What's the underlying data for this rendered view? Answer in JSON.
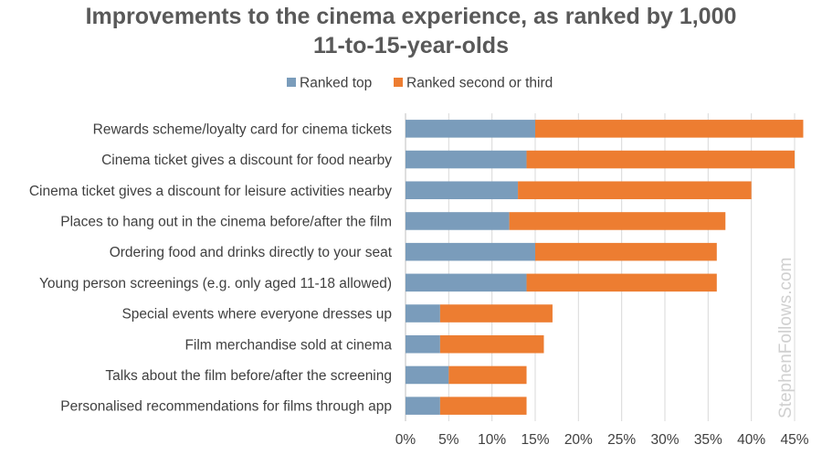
{
  "chart_data": {
    "type": "bar",
    "orientation": "horizontal",
    "stacked": true,
    "title_lines": [
      "Improvements to the cinema experience, as ranked by 1,000",
      "11-to-15-year-olds"
    ],
    "categories": [
      "Rewards scheme/loyalty card for cinema tickets",
      "Cinema ticket gives a discount for food nearby",
      "Cinema ticket gives a discount for leisure activities nearby",
      "Places to hang out in the cinema before/after the film",
      "Ordering food and drinks directly to your seat",
      "Young person screenings (e.g. only aged 11-18 allowed)",
      "Special events where everyone dresses up",
      "Film merchandise sold at cinema",
      "Talks about the film before/after the screening",
      "Personalised recommendations for films through app"
    ],
    "series": [
      {
        "name": "Ranked top",
        "color": "#7a9cbb",
        "values": [
          15,
          14,
          13,
          12,
          15,
          14,
          4,
          4,
          5,
          4
        ]
      },
      {
        "name": "Ranked second or third",
        "color": "#ed7d31",
        "values": [
          31,
          31,
          27,
          25,
          21,
          22,
          13,
          12,
          9,
          10
        ]
      }
    ],
    "xlim": [
      0,
      45
    ],
    "x_ticks": [
      "0%",
      "5%",
      "10%",
      "15%",
      "20%",
      "25%",
      "30%",
      "35%",
      "40%",
      "45%"
    ],
    "grid": "vertical",
    "legend_position": "top-center",
    "watermark": "StephenFollows.com"
  }
}
